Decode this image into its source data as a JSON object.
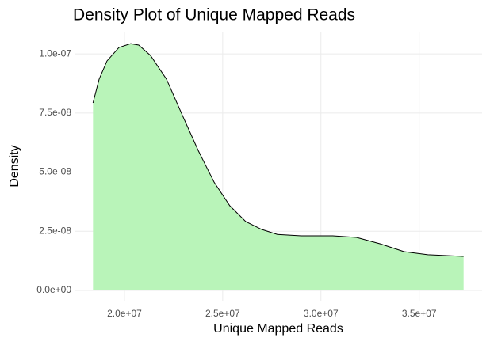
{
  "chart_data": {
    "type": "area",
    "title": "Density Plot of Unique Mapped Reads",
    "x_label": "Unique Mapped Reads",
    "y_label": "Density",
    "x": [
      18400000,
      18710000,
      19110000,
      19720000,
      20320000,
      20730000,
      21330000,
      22140000,
      22940000,
      23750000,
      24560000,
      25360000,
      26170000,
      26980000,
      27780000,
      28990000,
      30600000,
      31810000,
      33020000,
      34230000,
      35440000,
      37260000
    ],
    "values": [
      7.93e-08,
      8.93e-08,
      9.7e-08,
      1.027e-07,
      1.043e-07,
      1.037e-07,
      9.93e-08,
      8.93e-08,
      7.42e-08,
      5.92e-08,
      4.58e-08,
      3.58e-08,
      2.91e-08,
      2.58e-08,
      2.37e-08,
      2.31e-08,
      2.31e-08,
      2.24e-08,
      1.97e-08,
      1.64e-08,
      1.51e-08,
      1.44e-08
    ],
    "color": "#b9f4b9",
    "line_color": "#000000",
    "xlim": [
      17500000,
      38200000
    ],
    "ylim": [
      -4.35e-09,
      1.094e-07
    ],
    "xticks": [
      {
        "value": 20000000,
        "label": "2.0e+07"
      },
      {
        "value": 25000000,
        "label": "2.5e+07"
      },
      {
        "value": 30000000,
        "label": "3.0e+07"
      },
      {
        "value": 35000000,
        "label": "3.5e+07"
      }
    ],
    "yticks": [
      {
        "value": 0,
        "label": "0.0e+00"
      },
      {
        "value": 2.5e-08,
        "label": "2.5e-08"
      },
      {
        "value": 5e-08,
        "label": "5.0e-08"
      },
      {
        "value": 7.5e-08,
        "label": "7.5e-08"
      },
      {
        "value": 1e-07,
        "label": "1.0e-07"
      }
    ],
    "grid": true
  }
}
